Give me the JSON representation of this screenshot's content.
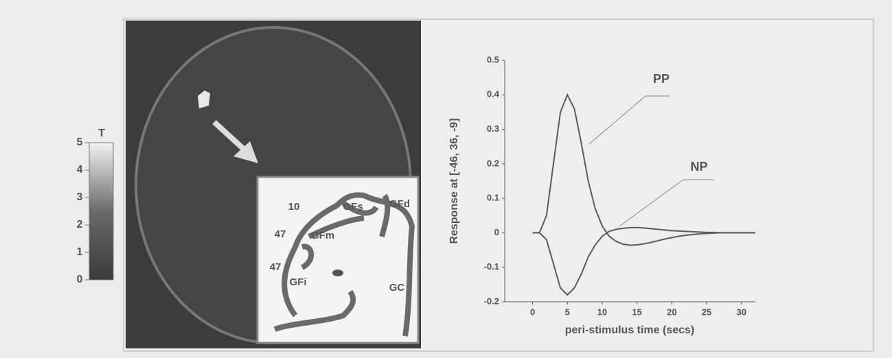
{
  "chart_data": {
    "type": "line",
    "xlabel": "peri-stimulus time (secs)",
    "ylabel": "Response at [-46, 36, -9]",
    "x": [
      0,
      1,
      2,
      3,
      4,
      5,
      6,
      7,
      8,
      9,
      10,
      11,
      12,
      13,
      14,
      15,
      16,
      17,
      18,
      19,
      20,
      21,
      22,
      23,
      24,
      25,
      26,
      27,
      28,
      29,
      30,
      31,
      32
    ],
    "series": [
      {
        "name": "PP",
        "color": "#5a5a5a",
        "values": [
          0,
          0,
          0.05,
          0.2,
          0.35,
          0.4,
          0.36,
          0.26,
          0.15,
          0.07,
          0.02,
          -0.01,
          -0.025,
          -0.033,
          -0.036,
          -0.035,
          -0.032,
          -0.028,
          -0.023,
          -0.018,
          -0.014,
          -0.01,
          -0.007,
          -0.005,
          -0.003,
          -0.002,
          -0.001,
          0,
          0,
          0,
          0,
          0,
          0
        ]
      },
      {
        "name": "NP",
        "color": "#5a5a5a",
        "values": [
          0,
          0,
          -0.02,
          -0.09,
          -0.16,
          -0.18,
          -0.16,
          -0.12,
          -0.07,
          -0.035,
          -0.01,
          0.004,
          0.01,
          0.013,
          0.015,
          0.015,
          0.014,
          0.012,
          0.01,
          0.008,
          0.006,
          0.005,
          0.004,
          0.003,
          0.002,
          0.001,
          0.001,
          0,
          0,
          0,
          0,
          0,
          0
        ]
      }
    ],
    "xlim": [
      -4,
      32
    ],
    "xticks": [
      0,
      5,
      10,
      15,
      20,
      25,
      30
    ],
    "ylim": [
      -0.2,
      0.5
    ],
    "yticks": [
      -0.2,
      -0.1,
      0,
      0.1,
      0.2,
      0.3,
      0.4,
      0.5
    ]
  },
  "colorbar": {
    "label": "T",
    "lim": [
      0,
      5
    ],
    "ticks": [
      0,
      1,
      2,
      3,
      4,
      5
    ]
  },
  "inset": {
    "labels": [
      "10",
      "GFs",
      "GFd",
      "47",
      "GFm",
      "47",
      "GFi",
      "GC"
    ]
  }
}
